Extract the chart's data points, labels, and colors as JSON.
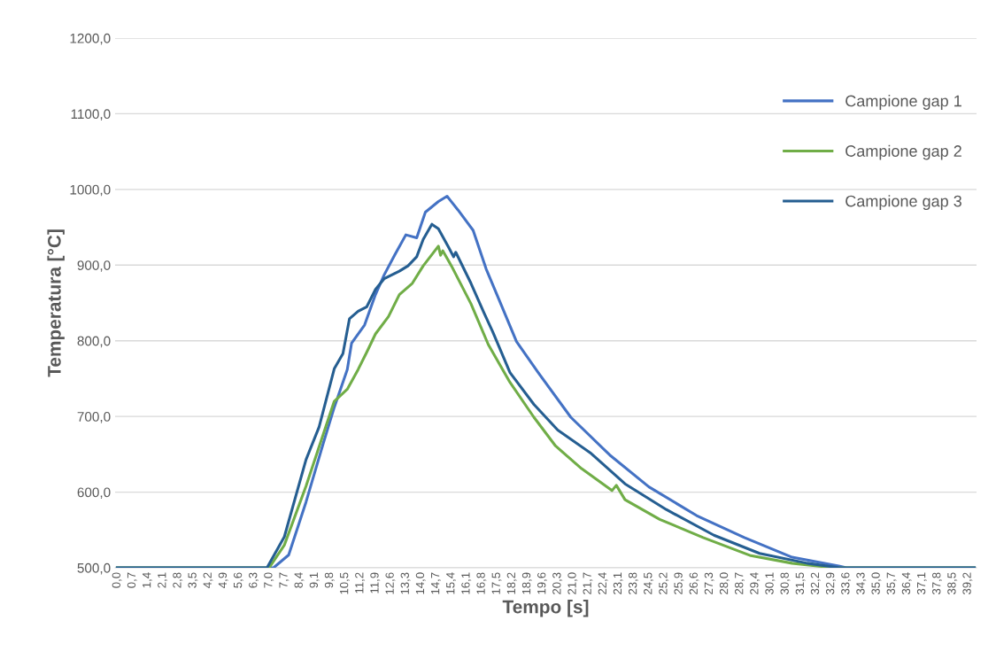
{
  "chart_data": {
    "type": "line",
    "xlabel": "Tempo [s]",
    "ylabel": "Temperatura [°C]",
    "xlim": [
      -0.1,
      39.6
    ],
    "ylim": [
      500,
      1200
    ],
    "yticks": [
      {
        "value": 500,
        "label": "500,0"
      },
      {
        "value": 600,
        "label": "600,0"
      },
      {
        "value": 700,
        "label": "700,0"
      },
      {
        "value": 800,
        "label": "800,0"
      },
      {
        "value": 900,
        "label": "900,0"
      },
      {
        "value": 1000,
        "label": "1000,0"
      },
      {
        "value": 1100,
        "label": "1100,0"
      },
      {
        "value": 1200,
        "label": "1200,0"
      }
    ],
    "xticks": [
      {
        "value": 0,
        "label": "0,0"
      },
      {
        "value": 0.7,
        "label": "0,7"
      },
      {
        "value": 1.4,
        "label": "1,4"
      },
      {
        "value": 2.1,
        "label": "2,1"
      },
      {
        "value": 2.8,
        "label": "2,8"
      },
      {
        "value": 3.5,
        "label": "3,5"
      },
      {
        "value": 4.2,
        "label": "4,2"
      },
      {
        "value": 4.9,
        "label": "4,9"
      },
      {
        "value": 5.6,
        "label": "5,6"
      },
      {
        "value": 6.3,
        "label": "6,3"
      },
      {
        "value": 7.0,
        "label": "7,0"
      },
      {
        "value": 7.7,
        "label": "7,7"
      },
      {
        "value": 8.4,
        "label": "8,4"
      },
      {
        "value": 9.1,
        "label": "9,1"
      },
      {
        "value": 9.8,
        "label": "9,8"
      },
      {
        "value": 10.5,
        "label": "10,5"
      },
      {
        "value": 11.2,
        "label": "11,2"
      },
      {
        "value": 11.9,
        "label": "11,9"
      },
      {
        "value": 12.6,
        "label": "12,6"
      },
      {
        "value": 13.3,
        "label": "13,3"
      },
      {
        "value": 14.0,
        "label": "14,0"
      },
      {
        "value": 14.7,
        "label": "14,7"
      },
      {
        "value": 15.4,
        "label": "15,4"
      },
      {
        "value": 16.1,
        "label": "16,1"
      },
      {
        "value": 16.8,
        "label": "16,8"
      },
      {
        "value": 17.5,
        "label": "17,5"
      },
      {
        "value": 18.2,
        "label": "18,2"
      },
      {
        "value": 18.9,
        "label": "18,9"
      },
      {
        "value": 19.6,
        "label": "19,6"
      },
      {
        "value": 20.3,
        "label": "20,3"
      },
      {
        "value": 21.0,
        "label": "21,0"
      },
      {
        "value": 21.7,
        "label": "21,7"
      },
      {
        "value": 22.4,
        "label": "22,4"
      },
      {
        "value": 23.1,
        "label": "23,1"
      },
      {
        "value": 23.8,
        "label": "23,8"
      },
      {
        "value": 24.5,
        "label": "24,5"
      },
      {
        "value": 25.2,
        "label": "25,2"
      },
      {
        "value": 25.9,
        "label": "25,9"
      },
      {
        "value": 26.6,
        "label": "26,6"
      },
      {
        "value": 27.3,
        "label": "27,3"
      },
      {
        "value": 28.0,
        "label": "28,0"
      },
      {
        "value": 28.7,
        "label": "28,7"
      },
      {
        "value": 29.4,
        "label": "29,4"
      },
      {
        "value": 30.1,
        "label": "30,1"
      },
      {
        "value": 30.8,
        "label": "30,8"
      },
      {
        "value": 31.5,
        "label": "31,5"
      },
      {
        "value": 32.2,
        "label": "32,2"
      },
      {
        "value": 32.9,
        "label": "32,9"
      },
      {
        "value": 33.6,
        "label": "33,6"
      },
      {
        "value": 34.3,
        "label": "34,3"
      },
      {
        "value": 35.0,
        "label": "35,0"
      },
      {
        "value": 35.7,
        "label": "35,7"
      },
      {
        "value": 36.4,
        "label": "36,4"
      },
      {
        "value": 37.1,
        "label": "37,1"
      },
      {
        "value": 37.8,
        "label": "37,8"
      },
      {
        "value": 38.5,
        "label": "38,5"
      },
      {
        "value": 39.2,
        "label": "39,2"
      }
    ],
    "grid": "y",
    "legend": "top right",
    "marker": "none",
    "line_style": "solid",
    "series": [
      {
        "name": "Campione gap 1",
        "color": "#4472c4",
        "x": [
          0,
          7.2,
          7.9,
          8.7,
          9.5,
          10.0,
          10.6,
          10.8,
          11.4,
          11.9,
          12.3,
          12.8,
          13.3,
          13.8,
          14.2,
          14.8,
          15.2,
          15.7,
          16.4,
          17.0,
          17.6,
          18.4,
          19.4,
          20.9,
          22.7,
          24.5,
          26.7,
          28.9,
          31.1,
          33.3,
          33.6,
          39.5
        ],
        "values": [
          500,
          500,
          517,
          587,
          665,
          712,
          762,
          797,
          821,
          861,
          887,
          914,
          940,
          936,
          970,
          984,
          991,
          973,
          946,
          895,
          854,
          799,
          758,
          699,
          649,
          607,
          569,
          540,
          514,
          502,
          500,
          500
        ]
      },
      {
        "name": "Campione gap 2",
        "color": "#70ad47",
        "x": [
          0,
          7.0,
          7.7,
          8.7,
          9.5,
          10.0,
          10.6,
          11.1,
          11.5,
          11.9,
          12.5,
          13.0,
          13.6,
          14.1,
          14.8,
          14.9,
          15.0,
          15.4,
          16.3,
          17.1,
          18.1,
          19.2,
          20.2,
          21.4,
          22.8,
          23.0,
          23.4,
          25.0,
          27.0,
          29.2,
          31.1,
          32.7,
          33.3,
          39.5
        ],
        "values": [
          500,
          500,
          530,
          608,
          677,
          720,
          736,
          762,
          785,
          809,
          832,
          861,
          876,
          899,
          925,
          913,
          919,
          899,
          849,
          795,
          745,
          699,
          661,
          631,
          602,
          609,
          590,
          564,
          540,
          516,
          506,
          501,
          500,
          500
        ]
      },
      {
        "name": "Campione gap 3",
        "color": "#255e91",
        "x": [
          0,
          6.9,
          7.7,
          8.7,
          9.3,
          10.0,
          10.4,
          10.7,
          11.1,
          11.5,
          11.9,
          12.3,
          13.0,
          13.4,
          13.8,
          14.1,
          14.5,
          14.8,
          15.3,
          15.5,
          15.6,
          16.3,
          16.9,
          17.3,
          18.1,
          19.2,
          20.3,
          21.8,
          23.4,
          25.3,
          27.5,
          29.6,
          31.8,
          33.3,
          39.5
        ],
        "values": [
          500,
          500,
          541,
          643,
          686,
          763,
          783,
          829,
          839,
          845,
          868,
          882,
          892,
          899,
          911,
          934,
          954,
          948,
          922,
          911,
          917,
          876,
          837,
          812,
          758,
          716,
          682,
          652,
          611,
          577,
          543,
          519,
          506,
          500,
          500
        ]
      }
    ]
  }
}
